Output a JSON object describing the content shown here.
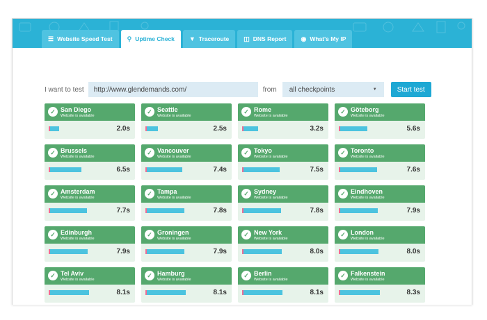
{
  "tabs": [
    {
      "label": "Website Speed Test",
      "icon": "speed-bars-icon",
      "active": false
    },
    {
      "label": "Uptime Check",
      "icon": "location-pin-icon",
      "active": true
    },
    {
      "label": "Traceroute",
      "icon": "traceroute-icon",
      "active": false
    },
    {
      "label": "DNS Report",
      "icon": "printer-icon",
      "active": false
    },
    {
      "label": "What's My IP",
      "icon": "globe-icon",
      "active": false
    }
  ],
  "form": {
    "label": "I want to test",
    "url_value": "http://www.glendemands.com/",
    "from_label": "from",
    "checkpoint_value": "all checkpoints",
    "start_label": "Start test"
  },
  "colors": {
    "header": "#2bb2d6",
    "card_top": "#55a86d",
    "card_bottom": "#e7f3ea",
    "bar": "#4cc3df",
    "bar_start": "#ee6d96",
    "button": "#1ea8d4"
  },
  "results": [
    {
      "city": "San Diego",
      "status": "Website is available",
      "time": "2.0s",
      "level": 0.25
    },
    {
      "city": "Seattle",
      "status": "Website is available",
      "time": "2.5s",
      "level": 0.3
    },
    {
      "city": "Rome",
      "status": "Website is available",
      "time": "3.2s",
      "level": 0.38
    },
    {
      "city": "Göteborg",
      "status": "Website is available",
      "time": "5.6s",
      "level": 0.68
    },
    {
      "city": "Brussels",
      "status": "Website is available",
      "time": "6.5s",
      "level": 0.78
    },
    {
      "city": "Vancouver",
      "status": "Website is available",
      "time": "7.4s",
      "level": 0.88
    },
    {
      "city": "Tokyo",
      "status": "Website is available",
      "time": "7.5s",
      "level": 0.9
    },
    {
      "city": "Toronto",
      "status": "Website is available",
      "time": "7.6s",
      "level": 0.91
    },
    {
      "city": "Amsterdam",
      "status": "Website is available",
      "time": "7.7s",
      "level": 0.92
    },
    {
      "city": "Tampa",
      "status": "Website is available",
      "time": "7.8s",
      "level": 0.93
    },
    {
      "city": "Sydney",
      "status": "Website is available",
      "time": "7.8s",
      "level": 0.93
    },
    {
      "city": "Eindhoven",
      "status": "Website is available",
      "time": "7.9s",
      "level": 0.94
    },
    {
      "city": "Edinburgh",
      "status": "Website is available",
      "time": "7.9s",
      "level": 0.94
    },
    {
      "city": "Groningen",
      "status": "Website is available",
      "time": "7.9s",
      "level": 0.94
    },
    {
      "city": "New York",
      "status": "Website is available",
      "time": "8.0s",
      "level": 0.95
    },
    {
      "city": "London",
      "status": "Website is available",
      "time": "8.0s",
      "level": 0.95
    },
    {
      "city": "Tel Aviv",
      "status": "Website is available",
      "time": "8.1s",
      "level": 0.96
    },
    {
      "city": "Hamburg",
      "status": "Website is available",
      "time": "8.1s",
      "level": 0.96
    },
    {
      "city": "Berlin",
      "status": "Website is available",
      "time": "8.1s",
      "level": 0.96
    },
    {
      "city": "Falkenstein",
      "status": "Website is available",
      "time": "8.3s",
      "level": 0.98
    }
  ]
}
